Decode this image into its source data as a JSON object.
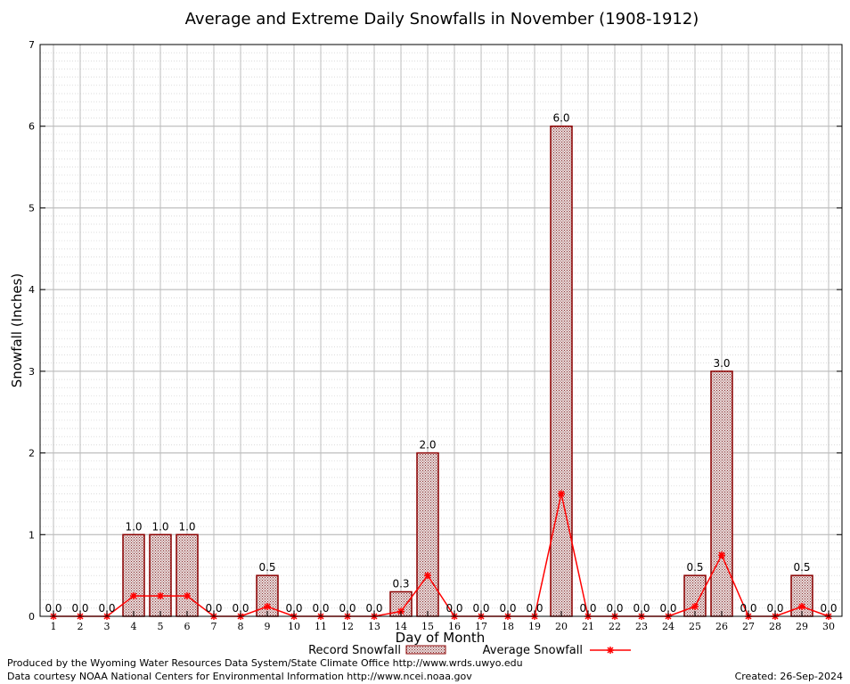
{
  "chart_data": {
    "type": "bar",
    "title": "Average and Extreme Daily Snowfalls in November (1908-1912)",
    "xlabel": "Day of Month",
    "ylabel": "Snowfall (Inches)",
    "ylim": [
      0,
      7
    ],
    "yticks": [
      0,
      1,
      2,
      3,
      4,
      5,
      6,
      7
    ],
    "categories": [
      "1",
      "2",
      "3",
      "4",
      "5",
      "6",
      "7",
      "8",
      "9",
      "10",
      "11",
      "12",
      "13",
      "14",
      "15",
      "16",
      "17",
      "18",
      "19",
      "20",
      "21",
      "22",
      "23",
      "24",
      "25",
      "26",
      "27",
      "28",
      "29",
      "30"
    ],
    "grid": true,
    "legend_position": "bottom",
    "series": [
      {
        "name": "Record Snowfall",
        "kind": "bar",
        "color": "#8b0000",
        "fill": "#d9c4c4",
        "values": [
          0.0,
          0.0,
          0.0,
          1.0,
          1.0,
          1.0,
          0.0,
          0.0,
          0.5,
          0.0,
          0.0,
          0.0,
          0.0,
          0.3,
          2.0,
          0.0,
          0.0,
          0.0,
          0.0,
          6.0,
          0.0,
          0.0,
          0.0,
          0.0,
          0.5,
          3.0,
          0.0,
          0.0,
          0.5,
          0.0
        ],
        "labels": [
          "0.0",
          "0.0",
          "0.0",
          "1.0",
          "1.0",
          "1.0",
          "0.0",
          "0.0",
          "0.5",
          "0.0",
          "0.0",
          "0.0",
          "0.0",
          "0.3",
          "2.0",
          "0.0",
          "0.0",
          "0.0",
          "0.0",
          "6.0",
          "0.0",
          "0.0",
          "0.0",
          "0.0",
          "0.5",
          "3.0",
          "0.0",
          "0.0",
          "0.5",
          "0.0"
        ]
      },
      {
        "name": "Average Snowfall",
        "kind": "line",
        "color": "#ff0000",
        "values": [
          0,
          0,
          0,
          0.25,
          0.25,
          0.25,
          0,
          0,
          0.12,
          0,
          0,
          0,
          0,
          0.06,
          0.5,
          0,
          0,
          0,
          0,
          1.5,
          0,
          0,
          0,
          0,
          0.12,
          0.75,
          0,
          0,
          0.12,
          0
        ]
      }
    ]
  },
  "footer": {
    "produced_by": "Produced by the Wyoming Water Resources Data System/State Climate Office http://www.wrds.uwyo.edu",
    "courtesy": "Data courtesy NOAA National Centers for Environmental Information http://www.ncei.noaa.gov",
    "created": "Created: 26-Sep-2024"
  }
}
